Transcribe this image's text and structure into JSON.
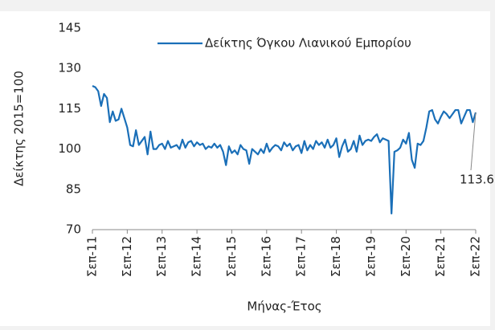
{
  "chart_data": {
    "type": "line",
    "y_label": "Δείκτης 2015=100",
    "x_label": "Μήνας-Έτος",
    "categories": [
      "Σεπ-11",
      null,
      null,
      null,
      null,
      null,
      null,
      null,
      null,
      null,
      null,
      null,
      "Σεπ-12",
      null,
      null,
      null,
      null,
      null,
      null,
      null,
      null,
      null,
      null,
      null,
      "Σεπ-13",
      null,
      null,
      null,
      null,
      null,
      null,
      null,
      null,
      null,
      null,
      null,
      "Σεπ-14",
      null,
      null,
      null,
      null,
      null,
      null,
      null,
      null,
      null,
      null,
      null,
      "Σεπ-15",
      null,
      null,
      null,
      null,
      null,
      null,
      null,
      null,
      null,
      null,
      null,
      "Σεπ-16",
      null,
      null,
      null,
      null,
      null,
      null,
      null,
      null,
      null,
      null,
      null,
      "Σεπ-17",
      null,
      null,
      null,
      null,
      null,
      null,
      null,
      null,
      null,
      null,
      null,
      "Σεπ-18",
      null,
      null,
      null,
      null,
      null,
      null,
      null,
      null,
      null,
      null,
      null,
      "Σεπ-19",
      null,
      null,
      null,
      null,
      null,
      null,
      null,
      null,
      null,
      null,
      null,
      "Σεπ-20",
      null,
      null,
      null,
      null,
      null,
      null,
      null,
      null,
      null,
      null,
      null,
      "Σεπ-21",
      null,
      null,
      null,
      null,
      null,
      null,
      null,
      null,
      null,
      null,
      null,
      "Σεπ-22"
    ],
    "series": [
      {
        "name": "Δείκτης Όγκου Λιανικού Εμπορίου",
        "color": "#1a6fb8",
        "values": [
          123.5,
          123,
          121.5,
          116,
          120.5,
          119,
          110,
          114,
          110.5,
          111,
          115,
          111.5,
          108,
          101.5,
          101,
          107,
          101.5,
          103,
          104.5,
          98,
          106.5,
          100,
          100,
          101.5,
          102,
          100,
          103,
          100.5,
          101,
          101.5,
          100,
          103.5,
          100.5,
          102.5,
          103,
          101,
          102.5,
          101.5,
          102,
          100,
          101,
          100.5,
          102,
          100.5,
          101.5,
          99,
          94,
          101,
          98.5,
          99.5,
          98,
          101.5,
          100,
          99.5,
          94.5,
          100,
          99,
          98,
          100,
          98.5,
          102,
          99,
          100.5,
          101.5,
          101,
          99.5,
          102.5,
          101,
          102,
          99.5,
          101,
          101.5,
          98.5,
          103,
          99.5,
          101.5,
          100,
          103,
          101.5,
          102.5,
          100.5,
          103.5,
          100.5,
          101.5,
          104,
          97,
          101,
          103.5,
          99,
          100,
          103,
          99,
          105,
          101.5,
          103,
          103.5,
          103,
          104.5,
          105.5,
          102.5,
          104,
          103.5,
          103,
          76,
          99,
          99.5,
          100.5,
          103.5,
          102,
          106,
          96,
          93,
          102,
          101.5,
          103,
          108,
          114,
          114.5,
          111,
          109.5,
          112,
          114,
          113,
          111.5,
          113,
          114.5,
          114.5,
          109.5,
          112,
          114.5,
          114.5,
          110,
          113.6
        ]
      }
    ],
    "ylim": [
      70,
      145
    ],
    "yticks": [
      70,
      85,
      100,
      115,
      130,
      145
    ],
    "grid": false
  }
}
